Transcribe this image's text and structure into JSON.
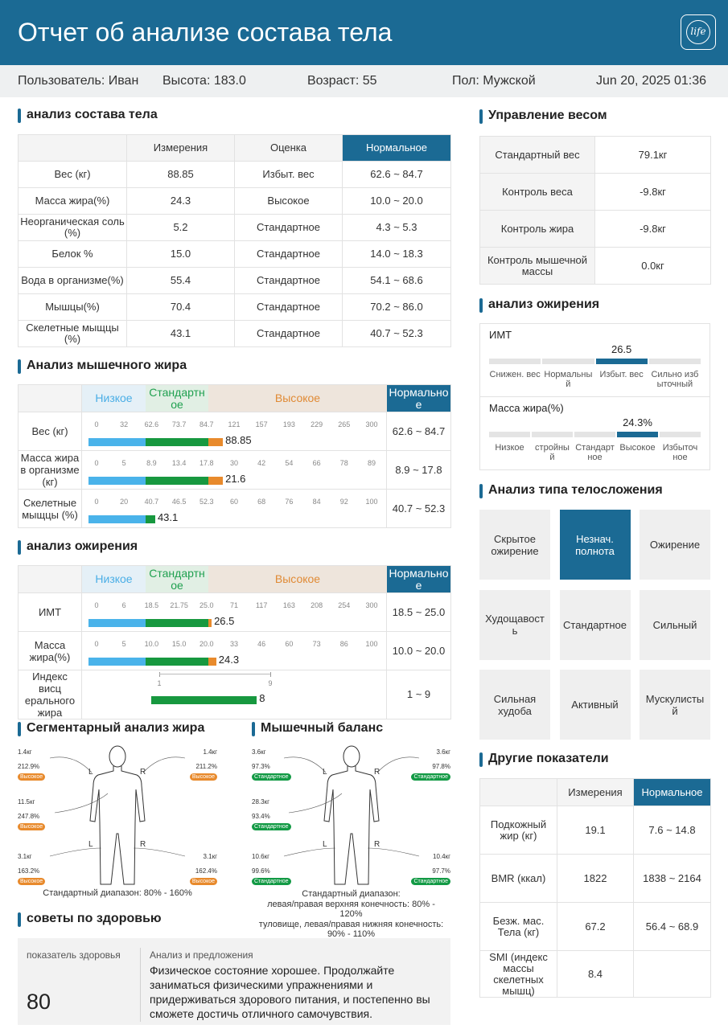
{
  "header": {
    "title": "Отчет об анализе состава тела",
    "logo_text": "life"
  },
  "info": {
    "user": "Пользователь: Иван",
    "height": "Высота: 183.0",
    "age": "Возраст: 55",
    "gender": "Пол: Мужской",
    "datetime": "Jun 20, 2025 01:36"
  },
  "composition": {
    "title": "анализ состава тела",
    "headers": [
      "",
      "Измерения",
      "Оценка",
      "Нормальное"
    ],
    "rows": [
      [
        "Вес (кг)",
        "88.85",
        "Избыт. вес",
        "62.6 ~ 84.7"
      ],
      [
        "Масса жира(%)",
        "24.3",
        "Высокое",
        "10.0 ~ 20.0"
      ],
      [
        "Неорганическая соль (%)",
        "5.2",
        "Стандартное",
        "4.3 ~ 5.3"
      ],
      [
        "Белок %",
        "15.0",
        "Стандартное",
        "14.0 ~ 18.3"
      ],
      [
        "Вода в организме(%)",
        "55.4",
        "Стандартное",
        "54.1 ~ 68.6"
      ],
      [
        "Мышцы(%)",
        "70.4",
        "Стандартное",
        "70.2 ~ 86.0"
      ],
      [
        "Скелетные мыщцы (%)",
        "43.1",
        "Стандартное",
        "40.7 ~ 52.3"
      ]
    ]
  },
  "muscle_fat": {
    "title": "Анализ мышечного жира",
    "labels": {
      "low": "Низкое",
      "std": "Стандартн ое",
      "high": "Высокое",
      "normal": "Нормально е"
    },
    "rows": [
      {
        "name": "Вес (кг)",
        "scale": [
          "0",
          "32",
          "62.6",
          "73.7",
          "84.7",
          "121",
          "157",
          "193",
          "229",
          "265",
          "300"
        ],
        "value": "88.85",
        "level": 0.462,
        "normal": "62.6 ~ 84.7"
      },
      {
        "name": "Масса жира в организме (кг)",
        "scale": [
          "0",
          "5",
          "8.9",
          "13.4",
          "17.8",
          "30",
          "42",
          "54",
          "66",
          "78",
          "89"
        ],
        "value": "21.6",
        "level": 0.462,
        "normal": "8.9 ~ 17.8"
      },
      {
        "name": "Скелетные мыщцы (%)",
        "scale": [
          "0",
          "20",
          "40.7",
          "46.5",
          "52.3",
          "60",
          "68",
          "76",
          "84",
          "92",
          "100"
        ],
        "value": "43.1",
        "level": 0.24,
        "normal": "40.7 ~ 52.3"
      }
    ]
  },
  "obesity_bars": {
    "title": "анализ ожирения",
    "rows": [
      {
        "name": "ИМТ",
        "scale": [
          "0",
          "6",
          "18.5",
          "21.75",
          "25.0",
          "71",
          "117",
          "163",
          "208",
          "254",
          "300"
        ],
        "value": "26.5",
        "level": 0.425,
        "normal": "18.5 ~ 25.0"
      },
      {
        "name": "Масса жира(%)",
        "scale": [
          "0",
          "5",
          "10.0",
          "15.0",
          "20.0",
          "33",
          "46",
          "60",
          "73",
          "86",
          "100"
        ],
        "value": "24.3",
        "level": 0.44,
        "normal": "10.0 ~ 20.0"
      },
      {
        "name": "Индекс висц ерального жира",
        "scale": [
          "1",
          "9"
        ],
        "value": "8",
        "level": 0.375,
        "normal": "1 ~ 9"
      }
    ]
  },
  "segmental_fat": {
    "title": "Сегментарный анализ жира",
    "la": [
      "1.4кг",
      "212.9%",
      "Высокое"
    ],
    "ra": [
      "1.4кг",
      "211.2%",
      "Высокое"
    ],
    "tr": [
      "11.5кг",
      "247.8%",
      "Высокое"
    ],
    "ll": [
      "3.1кг",
      "163.2%",
      "Высокое"
    ],
    "rl": [
      "3.1кг",
      "162.4%",
      "Высокое"
    ],
    "L": "L",
    "R": "R",
    "note": "Стандартный диапазон: 80% - 160%"
  },
  "muscle_balance": {
    "title": "Мышечный баланс",
    "la": [
      "3.6кг",
      "97.3%",
      "Стандартное"
    ],
    "ra": [
      "3.6кг",
      "97.8%",
      "Стандартное"
    ],
    "tr": [
      "28.3кг",
      "93.4%",
      "Стандартное"
    ],
    "ll": [
      "10.6кг",
      "99.6%",
      "Стандартное"
    ],
    "rl": [
      "10.4кг",
      "97.7%",
      "Стандартное"
    ],
    "L": "L",
    "R": "R",
    "note": [
      "Стандартный диапазон:",
      "левая/правая верхняя конечность: 80% -",
      "120%",
      "туловище, левая/правая нижняя конечность:",
      "90% - 110%"
    ]
  },
  "health": {
    "title": "советы по здоровью",
    "index_label": "показатель здоровья",
    "index_value": "80",
    "analysis_label": "Анализ и предложения",
    "text": "Физическое состояние хорошее. Продолжайте заниматься физическими упражнениями и придерживаться здорового питания, и постепенно вы сможете достичь отличного самочувствия."
  },
  "weight_mgmt": {
    "title": "Управление весом",
    "rows": [
      [
        "Стандартный вес",
        "79.1кг"
      ],
      [
        "Контроль веса",
        "-9.8кг"
      ],
      [
        "Контроль жира",
        "-9.8кг"
      ],
      [
        "Контроль мышечной массы",
        "0.0кг"
      ]
    ]
  },
  "obesity_gauge": {
    "title": "анализ ожирения",
    "bmi": {
      "label": "ИМТ",
      "value": "26.5",
      "cats": [
        "Снижен. вес",
        "Нормальны й",
        "Избыт. вес",
        "Сильно изб ыточный"
      ],
      "active": 2
    },
    "fat": {
      "label": "Масса жира(%)",
      "value": "24.3%",
      "cats": [
        "Низкое",
        "стройны й",
        "Стандарт ное",
        "Высокое",
        "Избыточ ное"
      ],
      "active": 3
    }
  },
  "body_type": {
    "title": "Анализ типа телосложения",
    "tiles": [
      "Скрытое ожирение",
      "Незнач. полнота",
      "Ожирение",
      "Худощавост ь",
      "Стандартное",
      "Сильный",
      "Сильная худоба",
      "Активный",
      "Мускулисты й"
    ],
    "active": 1
  },
  "other": {
    "title": "Другие показатели",
    "headers": [
      "",
      "Измерения",
      "Нормальное"
    ],
    "rows": [
      [
        "Подкожный жир (кг)",
        "19.1",
        "7.6 ~ 14.8"
      ],
      [
        "BMR (ккал)",
        "1822",
        "1838 ~ 2164"
      ],
      [
        "Безж. мас. Тела (кг)",
        "67.2",
        "56.4 ~ 68.9"
      ],
      [
        "SMI (индекс массы скелетных мышц)",
        "8.4",
        ""
      ]
    ]
  },
  "colors": {
    "accent": "#1b6a94",
    "low": "#4ab3ea",
    "std": "#17983f",
    "high": "#e88a2c"
  }
}
